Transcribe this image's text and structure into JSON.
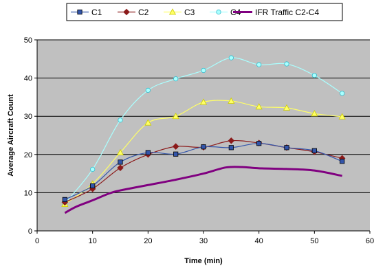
{
  "chart_data": {
    "type": "line",
    "title": "",
    "xlabel": "Time (min)",
    "ylabel": "Average Aircraft Count",
    "xlim": [
      0,
      60
    ],
    "ylim": [
      0,
      50
    ],
    "xticks": [
      "0",
      "10",
      "20",
      "30",
      "40",
      "50",
      "60"
    ],
    "yticks": [
      "0",
      "10",
      "20",
      "30",
      "40",
      "50"
    ],
    "grid": "horizontal",
    "plot_background": "#c0c0c0",
    "legend_position": "top",
    "series": [
      {
        "name": "C1",
        "color": "#3355aa",
        "marker": "square",
        "x": [
          5,
          10,
          15,
          20,
          25,
          30,
          35,
          40,
          45,
          50,
          55
        ],
        "y": [
          8.2,
          11.8,
          18.0,
          20.5,
          20.1,
          22.0,
          21.8,
          22.9,
          21.8,
          21.0,
          18.2
        ]
      },
      {
        "name": "C2",
        "color": "#8b1a1a",
        "marker": "diamond",
        "x": [
          5,
          10,
          15,
          20,
          25,
          30,
          35,
          40,
          45,
          50,
          55
        ],
        "y": [
          7.5,
          11.0,
          16.5,
          20.0,
          22.1,
          21.9,
          23.6,
          23.0,
          21.8,
          20.7,
          19.0
        ]
      },
      {
        "name": "C3",
        "color": "#ffff66",
        "marker": "triangle",
        "x": [
          5,
          10,
          15,
          20,
          25,
          30,
          35,
          40,
          45,
          50,
          55
        ],
        "y": [
          7.0,
          12.3,
          20.5,
          28.3,
          30.0,
          33.7,
          34.0,
          32.5,
          32.2,
          30.7,
          29.9
        ]
      },
      {
        "name": "C4",
        "color": "#aaffff",
        "marker": "circle",
        "x": [
          5,
          10,
          15,
          20,
          25,
          30,
          35,
          40,
          45,
          50,
          55
        ],
        "y": [
          7.2,
          16.1,
          29.0,
          36.8,
          39.8,
          42.0,
          45.3,
          43.5,
          43.7,
          40.7,
          36.0
        ]
      },
      {
        "name": "IFR Traffic C2-C4",
        "color": "#800080",
        "marker": "none",
        "x": [
          5,
          7,
          10,
          13,
          15,
          20,
          25,
          30,
          34,
          37,
          40,
          45,
          50,
          55
        ],
        "y": [
          4.7,
          6.3,
          8.0,
          9.8,
          10.6,
          12.0,
          13.4,
          15.0,
          16.6,
          16.7,
          16.4,
          16.2,
          15.8,
          14.4
        ]
      }
    ]
  }
}
